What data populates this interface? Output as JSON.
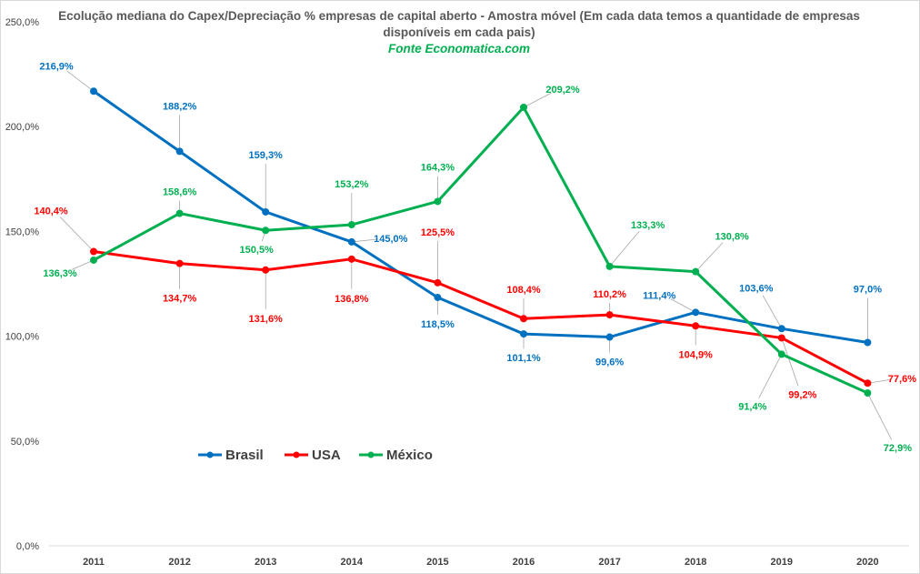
{
  "chart_data": {
    "type": "line",
    "title": "Ecolução mediana do Capex/Depreciação % empresas de capital aberto - Amostra móvel (Em cada data temos a quantidade de empresas disponíveis em cada pais)",
    "subtitle": "Fonte Economatica.com",
    "categories": [
      "2011",
      "2012",
      "2013",
      "2014",
      "2015",
      "2016",
      "2017",
      "2018",
      "2019",
      "2020"
    ],
    "y_ticks": [
      "0,0%",
      "50,0%",
      "100,0%",
      "150,0%",
      "200,0%",
      "250,0%"
    ],
    "ylim": [
      0,
      250
    ],
    "grid": false,
    "legend_position": "bottom-left",
    "series": [
      {
        "name": "Brasil",
        "color": "#0070c0",
        "values": [
          216.9,
          188.2,
          159.3,
          145.0,
          118.5,
          101.1,
          99.6,
          111.4,
          103.6,
          97.0
        ],
        "labels": [
          "216,9%",
          "188,2%",
          "159,3%",
          "145,0%",
          "118,5%",
          "101,1%",
          "99,6%",
          "111,4%",
          "103,6%",
          "97,0%"
        ]
      },
      {
        "name": "USA",
        "color": "#ff0000",
        "values": [
          140.4,
          134.7,
          131.6,
          136.8,
          125.5,
          108.4,
          110.2,
          104.9,
          99.2,
          77.6
        ],
        "labels": [
          "140,4%",
          "134,7%",
          "131,6%",
          "136,8%",
          "125,5%",
          "108,4%",
          "110,2%",
          "104,9%",
          "99,2%",
          "77,6%"
        ]
      },
      {
        "name": "México",
        "color": "#00b050",
        "values": [
          136.3,
          158.6,
          150.5,
          153.2,
          164.3,
          209.2,
          133.3,
          130.8,
          91.4,
          72.9
        ],
        "labels": [
          "136,3%",
          "158,6%",
          "150,5%",
          "153,2%",
          "164,3%",
          "209,2%",
          "133,3%",
          "130,8%",
          "91,4%",
          "72,9%"
        ]
      }
    ]
  }
}
